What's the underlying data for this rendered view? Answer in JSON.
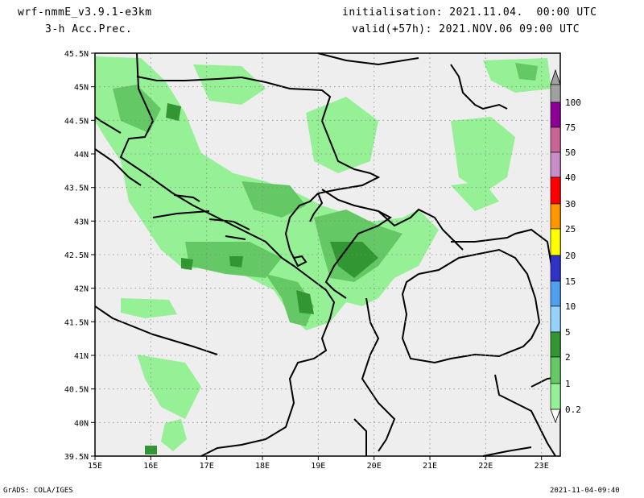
{
  "header": {
    "model": "wrf-nmmE_v3.9.1-e3km",
    "product": "3-h Acc.Prec.",
    "init": "initialisation: 2021.11.04.  00:00 UTC",
    "valid": "valid(+57h): 2021.NOV.06 09:00 UTC"
  },
  "map": {
    "lat_labels": [
      "45.5N",
      "45N",
      "44.5N",
      "44N",
      "43.5N",
      "43N",
      "42.5N",
      "42N",
      "41.5N",
      "41N",
      "40.5N",
      "40N",
      "39.5N"
    ],
    "lon_labels": [
      "15E",
      "16E",
      "17E",
      "18E",
      "19E",
      "20E",
      "21E",
      "22E",
      "23E"
    ],
    "land_color": "#eeeeee",
    "sea_color": "#eeeeee"
  },
  "colorbar": {
    "labels": [
      "100",
      "75",
      "50",
      "40",
      "30",
      "25",
      "20",
      "15",
      "10",
      "5",
      "2",
      "1",
      "0.2"
    ],
    "colors": [
      "#a0a0a0",
      "#8c0096",
      "#c86496",
      "#c88cc8",
      "#ff0000",
      "#ff9600",
      "#ffff00",
      "#3232c8",
      "#50a0f0",
      "#96d2fa",
      "#329632",
      "#64c864",
      "#96f096",
      "#ffffff"
    ]
  },
  "footer": {
    "left": "GrADS: COLA/IGES",
    "right": "2021-11-04-09:40"
  }
}
